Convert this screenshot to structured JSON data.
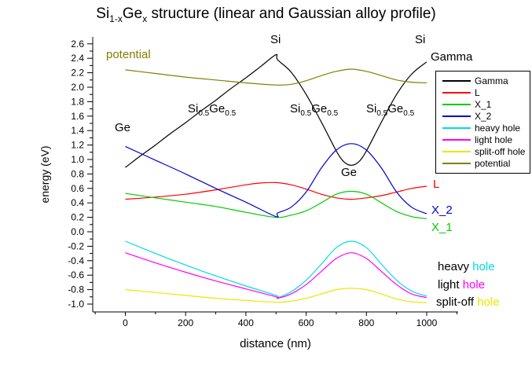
{
  "title": {
    "t1": "Si",
    "sub1": "1-x",
    "t2": "Ge",
    "sub2": "x",
    "t3": " structure (linear and Gaussian alloy profile)"
  },
  "axes": {
    "xlabel": "distance (nm)",
    "ylabel": "energy (eV)"
  },
  "annotations": {
    "potential": "potential",
    "si_peak": "Si",
    "si_right": "Si",
    "gamma": "Gamma",
    "ge_left": "Ge",
    "ge_mid": "Ge",
    "sige": {
      "si": "Si",
      "sub1": "0.5",
      "ge": "Ge",
      "sub2": "0.5"
    },
    "l": "L",
    "x2": "X_2",
    "x1": "X_1",
    "heavy": {
      "prefix": "heavy ",
      "word": "hole"
    },
    "light": {
      "prefix": "light ",
      "word": "hole"
    },
    "splitoff": {
      "prefix": "split-off ",
      "word": "hole"
    }
  },
  "chart_data": {
    "type": "line",
    "title": "Si(1-x)Ge(x) structure (linear and Gaussian alloy profile)",
    "xlabel": "distance (nm)",
    "ylabel": "energy (eV)",
    "xlim": [
      -110,
      1100
    ],
    "ylim": [
      -1.1,
      2.7
    ],
    "x_ticks": [
      0,
      200,
      400,
      600,
      800,
      1000
    ],
    "x_minor": {
      "min": -100,
      "max": 1100,
      "step": 100
    },
    "y_ticks": {
      "min": -1.0,
      "max": 2.6,
      "step": 0.2,
      "minor_step": 0.1
    },
    "grid": false,
    "legend_position": "upper right",
    "colors": {
      "gamma": "#000000",
      "l": "#ff0000",
      "x1": "#00cc00",
      "x2": "#0000cc",
      "heavy": "#00dddd",
      "light": "#ff00ff",
      "splitoff": "#e8e800",
      "potential": "#808000"
    },
    "series": [
      {
        "name": "Gamma",
        "color": "#000000",
        "points": [
          [
            0,
            0.89
          ],
          [
            50,
            1.05
          ],
          [
            100,
            1.2
          ],
          [
            150,
            1.36
          ],
          [
            200,
            1.51
          ],
          [
            250,
            1.67
          ],
          [
            300,
            1.82
          ],
          [
            350,
            1.98
          ],
          [
            400,
            2.13
          ],
          [
            450,
            2.29
          ],
          [
            500,
            2.45
          ],
          [
            505,
            2.38
          ],
          [
            550,
            2.21
          ],
          [
            600,
            1.9
          ],
          [
            650,
            1.52
          ],
          [
            700,
            1.12
          ],
          [
            725,
            0.97
          ],
          [
            750,
            0.92
          ],
          [
            775,
            0.97
          ],
          [
            800,
            1.12
          ],
          [
            850,
            1.52
          ],
          [
            900,
            1.9
          ],
          [
            950,
            2.18
          ],
          [
            1000,
            2.35
          ]
        ]
      },
      {
        "name": "L",
        "color": "#ff0000",
        "points": [
          [
            0,
            0.45
          ],
          [
            100,
            0.48
          ],
          [
            200,
            0.52
          ],
          [
            300,
            0.58
          ],
          [
            400,
            0.65
          ],
          [
            450,
            0.675
          ],
          [
            500,
            0.68
          ],
          [
            550,
            0.65
          ],
          [
            600,
            0.59
          ],
          [
            650,
            0.52
          ],
          [
            700,
            0.47
          ],
          [
            750,
            0.45
          ],
          [
            800,
            0.47
          ],
          [
            850,
            0.5
          ],
          [
            900,
            0.55
          ],
          [
            950,
            0.6
          ],
          [
            1000,
            0.63
          ]
        ]
      },
      {
        "name": "X_1",
        "color": "#00cc00",
        "points": [
          [
            0,
            0.53
          ],
          [
            100,
            0.47
          ],
          [
            200,
            0.41
          ],
          [
            300,
            0.35
          ],
          [
            400,
            0.27
          ],
          [
            500,
            0.2
          ],
          [
            550,
            0.23
          ],
          [
            600,
            0.29
          ],
          [
            650,
            0.4
          ],
          [
            700,
            0.52
          ],
          [
            750,
            0.56
          ],
          [
            800,
            0.52
          ],
          [
            850,
            0.4
          ],
          [
            900,
            0.28
          ],
          [
            950,
            0.21
          ],
          [
            1000,
            0.18
          ]
        ]
      },
      {
        "name": "X_2",
        "color": "#0000cc",
        "points": [
          [
            0,
            1.18
          ],
          [
            100,
            0.99
          ],
          [
            200,
            0.8
          ],
          [
            300,
            0.6
          ],
          [
            400,
            0.41
          ],
          [
            500,
            0.21
          ],
          [
            505,
            0.26
          ],
          [
            550,
            0.34
          ],
          [
            600,
            0.55
          ],
          [
            650,
            0.88
          ],
          [
            700,
            1.13
          ],
          [
            750,
            1.22
          ],
          [
            800,
            1.13
          ],
          [
            850,
            0.88
          ],
          [
            900,
            0.55
          ],
          [
            950,
            0.34
          ],
          [
            1000,
            0.25
          ]
        ]
      },
      {
        "name": "heavy hole",
        "color": "#00dddd",
        "points": [
          [
            0,
            -0.13
          ],
          [
            100,
            -0.3
          ],
          [
            200,
            -0.46
          ],
          [
            300,
            -0.61
          ],
          [
            400,
            -0.75
          ],
          [
            500,
            -0.88
          ],
          [
            505,
            -0.91
          ],
          [
            550,
            -0.83
          ],
          [
            600,
            -0.67
          ],
          [
            650,
            -0.45
          ],
          [
            700,
            -0.22
          ],
          [
            750,
            -0.13
          ],
          [
            800,
            -0.22
          ],
          [
            850,
            -0.45
          ],
          [
            900,
            -0.67
          ],
          [
            950,
            -0.82
          ],
          [
            1000,
            -0.89
          ]
        ]
      },
      {
        "name": "light hole",
        "color": "#ff00ff",
        "points": [
          [
            0,
            -0.29
          ],
          [
            100,
            -0.43
          ],
          [
            200,
            -0.56
          ],
          [
            300,
            -0.68
          ],
          [
            400,
            -0.79
          ],
          [
            500,
            -0.9
          ],
          [
            505,
            -0.92
          ],
          [
            550,
            -0.86
          ],
          [
            600,
            -0.73
          ],
          [
            650,
            -0.55
          ],
          [
            700,
            -0.37
          ],
          [
            750,
            -0.29
          ],
          [
            800,
            -0.37
          ],
          [
            850,
            -0.55
          ],
          [
            900,
            -0.73
          ],
          [
            950,
            -0.86
          ],
          [
            1000,
            -0.91
          ]
        ]
      },
      {
        "name": "split-off hole",
        "color": "#e8e800",
        "points": [
          [
            0,
            -0.8
          ],
          [
            100,
            -0.84
          ],
          [
            200,
            -0.88
          ],
          [
            300,
            -0.92
          ],
          [
            400,
            -0.95
          ],
          [
            500,
            -0.975
          ],
          [
            550,
            -0.96
          ],
          [
            600,
            -0.92
          ],
          [
            650,
            -0.86
          ],
          [
            700,
            -0.8
          ],
          [
            750,
            -0.78
          ],
          [
            800,
            -0.8
          ],
          [
            850,
            -0.86
          ],
          [
            900,
            -0.93
          ],
          [
            950,
            -0.97
          ],
          [
            1000,
            -0.98
          ]
        ]
      },
      {
        "name": "potential",
        "color": "#808000",
        "points": [
          [
            0,
            2.24
          ],
          [
            100,
            2.19
          ],
          [
            200,
            2.14
          ],
          [
            300,
            2.1
          ],
          [
            400,
            2.06
          ],
          [
            500,
            2.03
          ],
          [
            550,
            2.04
          ],
          [
            600,
            2.09
          ],
          [
            650,
            2.16
          ],
          [
            700,
            2.22
          ],
          [
            750,
            2.25
          ],
          [
            800,
            2.22
          ],
          [
            850,
            2.16
          ],
          [
            900,
            2.1
          ],
          [
            950,
            2.07
          ],
          [
            1000,
            2.06
          ]
        ]
      }
    ]
  }
}
